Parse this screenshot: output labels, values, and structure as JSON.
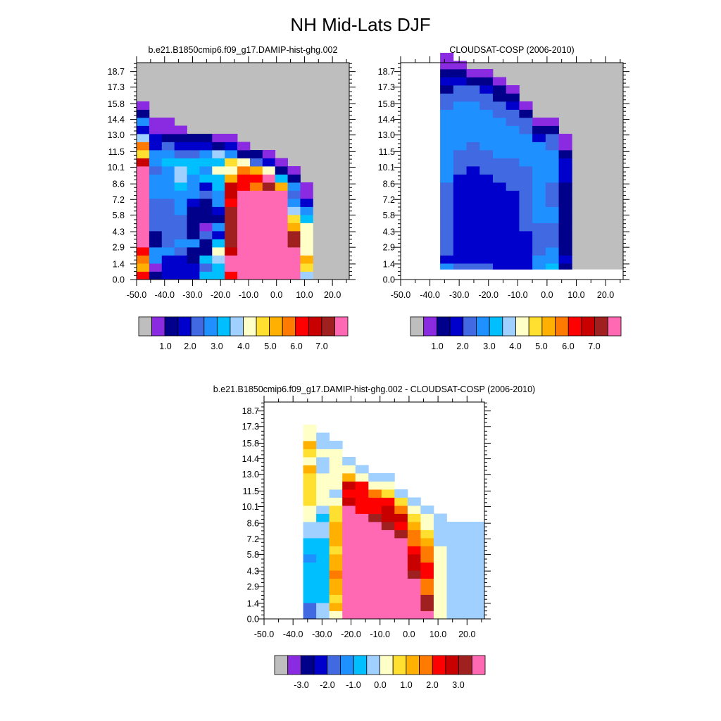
{
  "page": {
    "title": "NH Mid-Lats DJF"
  },
  "colors": {
    "missing": "#bebebe",
    "palette": [
      "#8a2be2",
      "#00008b",
      "#0000cd",
      "#4169e1",
      "#1e90ff",
      "#00bfff",
      "#a0d0ff",
      "#ffffc8",
      "#ffe030",
      "#ffb000",
      "#ff7a00",
      "#ff0000",
      "#c80000",
      "#a02020",
      "#ff69b4"
    ]
  },
  "chart_data": [
    {
      "type": "heatmap",
      "title": "b.e21.B1850cmip6.f09_g17.DAMIP-hist-ghg.002",
      "xlabel": "",
      "ylabel": "",
      "xticks": [
        "-50.0",
        "-40.0",
        "-30.0",
        "-20.0",
        "-10.0",
        "0.0",
        "10.0",
        "20.0"
      ],
      "xrange": [
        -50,
        26
      ],
      "yticks": [
        "0.0",
        "1.4",
        "2.9",
        "4.3",
        "5.8",
        "7.2",
        "8.6",
        "10.1",
        "11.5",
        "13.0",
        "14.4",
        "15.8",
        "17.3",
        "18.7"
      ],
      "yrange": [
        0,
        19.5
      ],
      "colorbar": {
        "labels": [
          "1.0",
          "2.0",
          "3.0",
          "4.0",
          "5.0",
          "6.0",
          "7.0"
        ],
        "missing_box": true
      },
      "columns": [
        {
          "x0": -50.0,
          "x1": -45.5,
          "levels": [
            11,
            9,
            10,
            11,
            14,
            14,
            14,
            14,
            14,
            14,
            14,
            14,
            14,
            14,
            12,
            8,
            10,
            6,
            2,
            4,
            1,
            0
          ]
        },
        {
          "x0": -45.5,
          "x1": -41.0,
          "levels": [
            1,
            0,
            4,
            4,
            1,
            1,
            3,
            3,
            3,
            3,
            4,
            4,
            4,
            3,
            4,
            4,
            2,
            2,
            0,
            0
          ]
        },
        {
          "x0": -41.0,
          "x1": -36.5,
          "levels": [
            2,
            2,
            2,
            4,
            3,
            3,
            3,
            3,
            3,
            3,
            4,
            4,
            4,
            4,
            5,
            4,
            3,
            1,
            0,
            0
          ]
        },
        {
          "x0": -36.5,
          "x1": -32.0,
          "levels": [
            2,
            2,
            2,
            3,
            4,
            3,
            3,
            3,
            4,
            4,
            4,
            5,
            6,
            6,
            5,
            3,
            2,
            1,
            0
          ]
        },
        {
          "x0": -32.0,
          "x1": -27.5,
          "levels": [
            2,
            2,
            1,
            1,
            4,
            1,
            1,
            1,
            1,
            2,
            4,
            4,
            4,
            5,
            5,
            3,
            2,
            1
          ]
        },
        {
          "x0": -27.5,
          "x1": -23.0,
          "levels": [
            5,
            3,
            5,
            1,
            1,
            3,
            0,
            1,
            1,
            1,
            3,
            2,
            5,
            4,
            5,
            4,
            2,
            1
          ]
        },
        {
          "x0": -23.0,
          "x1": -18.5,
          "levels": [
            5,
            5,
            6,
            7,
            5,
            2,
            4,
            1,
            2,
            4,
            4,
            5,
            5,
            7,
            5,
            6,
            1,
            0
          ]
        },
        {
          "x0": -18.5,
          "x1": -14.0,
          "levels": [
            11,
            14,
            14,
            12,
            13,
            13,
            13,
            13,
            13,
            11,
            12,
            12,
            9,
            7,
            8,
            4,
            2,
            0
          ]
        },
        {
          "x0": -14.0,
          "x1": -9.5,
          "levels": [
            14,
            14,
            14,
            14,
            14,
            14,
            14,
            14,
            14,
            14,
            14,
            11,
            11,
            10,
            7,
            1,
            0
          ]
        },
        {
          "x0": -9.5,
          "x1": -5.0,
          "levels": [
            14,
            14,
            14,
            14,
            14,
            14,
            14,
            14,
            14,
            14,
            14,
            10,
            11,
            9,
            3,
            1
          ]
        },
        {
          "x0": -5.0,
          "x1": -0.5,
          "levels": [
            14,
            14,
            14,
            14,
            14,
            14,
            14,
            14,
            14,
            14,
            14,
            13,
            14,
            7,
            2,
            0
          ]
        },
        {
          "x0": -0.5,
          "x1": 4.0,
          "levels": [
            14,
            14,
            14,
            14,
            14,
            14,
            14,
            14,
            14,
            14,
            14,
            9,
            5,
            1,
            0
          ]
        },
        {
          "x0": 4.0,
          "x1": 8.5,
          "levels": [
            14,
            14,
            14,
            14,
            13,
            13,
            9,
            8,
            6,
            4,
            3,
            4,
            1,
            0
          ]
        },
        {
          "x0": 8.5,
          "x1": 13.0,
          "levels": [
            6,
            8,
            9,
            7,
            7,
            7,
            7,
            5,
            4,
            2,
            0,
            0
          ]
        }
      ]
    },
    {
      "type": "heatmap",
      "title": "CLOUDSAT-COSP (2006-2010)",
      "xlabel": "",
      "ylabel": "",
      "xticks": [
        "-50.0",
        "-40.0",
        "-30.0",
        "-20.0",
        "-10.0",
        "0.0",
        "10.0",
        "20.0"
      ],
      "xrange": [
        -50,
        26
      ],
      "yticks": [
        "0.0",
        "1.4",
        "2.9",
        "4.3",
        "5.8",
        "7.2",
        "8.6",
        "10.1",
        "11.5",
        "13.0",
        "14.4",
        "15.8",
        "17.3",
        "18.7"
      ],
      "yrange": [
        0,
        19.5
      ],
      "colorbar": {
        "labels": [
          "1.0",
          "2.0",
          "3.0",
          "4.0",
          "5.0",
          "6.0",
          "7.0"
        ],
        "missing_box": true
      },
      "columns": [
        {
          "x0": -36.5,
          "x1": -32.0,
          "levels": [
            6,
            4,
            2,
            3,
            3,
            3,
            3,
            3,
            3,
            3,
            3,
            3,
            4,
            4,
            4,
            4,
            4,
            4,
            4,
            4,
            4,
            3,
            3,
            1,
            2,
            1,
            0,
            0
          ]
        },
        {
          "x0": -32.0,
          "x1": -27.5,
          "levels": [
            5,
            3,
            2,
            2,
            2,
            2,
            2,
            2,
            2,
            2,
            2,
            2,
            2,
            3,
            3,
            3,
            4,
            4,
            4,
            4,
            4,
            4,
            3,
            3,
            2,
            1,
            0
          ]
        },
        {
          "x0": -27.5,
          "x1": -23.0,
          "levels": [
            3,
            3,
            2,
            2,
            2,
            2,
            2,
            2,
            2,
            2,
            2,
            2,
            2,
            2,
            3,
            3,
            3,
            4,
            4,
            4,
            4,
            4,
            3,
            3,
            1,
            0
          ]
        },
        {
          "x0": -23.0,
          "x1": -18.5,
          "levels": [
            3,
            3,
            2,
            2,
            2,
            2,
            2,
            2,
            2,
            2,
            2,
            2,
            2,
            3,
            3,
            3,
            4,
            4,
            4,
            4,
            4,
            3,
            3,
            2,
            1,
            0
          ]
        },
        {
          "x0": -18.5,
          "x1": -14.0,
          "levels": [
            3,
            2,
            2,
            2,
            2,
            2,
            2,
            2,
            2,
            2,
            2,
            2,
            3,
            3,
            3,
            4,
            4,
            4,
            4,
            4,
            3,
            3,
            1,
            1,
            0
          ]
        },
        {
          "x0": -14.0,
          "x1": -9.5,
          "levels": [
            3,
            2,
            2,
            2,
            2,
            2,
            2,
            2,
            2,
            2,
            2,
            3,
            3,
            3,
            3,
            4,
            4,
            4,
            4,
            3,
            3,
            2,
            1,
            0
          ]
        },
        {
          "x0": -9.5,
          "x1": -5.0,
          "levels": [
            5,
            2,
            2,
            2,
            2,
            2,
            3,
            3,
            3,
            3,
            3,
            3,
            3,
            3,
            4,
            4,
            4,
            4,
            3,
            3,
            1,
            0
          ]
        },
        {
          "x0": -5.0,
          "x1": -0.5,
          "levels": [
            5,
            4,
            4,
            3,
            3,
            3,
            3,
            4,
            4,
            4,
            4,
            4,
            4,
            4,
            4,
            4,
            4,
            2,
            1,
            0
          ]
        },
        {
          "x0": -0.5,
          "x1": 4.0,
          "levels": [
            5,
            5,
            4,
            4,
            3,
            3,
            3,
            4,
            4,
            3,
            3,
            3,
            4,
            4,
            4,
            4,
            3,
            3,
            1,
            0
          ]
        },
        {
          "x0": 4.0,
          "x1": 8.5,
          "levels": [
            1,
            1,
            2,
            1,
            1,
            1,
            1,
            1,
            1,
            1,
            1,
            1,
            2,
            2,
            2,
            1,
            0,
            0
          ]
        },
        {
          "x0": 8.5,
          "x1": 13.0,
          "levels": [
            -1,
            -1,
            -1,
            -1,
            -1,
            -1,
            -1,
            -1,
            -1,
            -1,
            -1,
            -1,
            -1,
            -1,
            -1
          ]
        }
      ]
    },
    {
      "type": "heatmap",
      "title": "b.e21.B1850cmip6.f09_g17.DAMIP-hist-ghg.002 - CLOUDSAT-COSP (2006-2010)",
      "xlabel": "",
      "ylabel": "",
      "xticks": [
        "-50.0",
        "-40.0",
        "-30.0",
        "-20.0",
        "-10.0",
        "0.0",
        "10.0",
        "20.0"
      ],
      "xrange": [
        -50,
        26
      ],
      "yticks": [
        "0.0",
        "1.4",
        "2.9",
        "4.3",
        "5.8",
        "7.2",
        "8.6",
        "10.1",
        "11.5",
        "13.0",
        "14.4",
        "15.8",
        "17.3",
        "18.7"
      ],
      "yrange": [
        0,
        19.5
      ],
      "colorbar": {
        "labels": [
          "-3.0",
          "-2.0",
          "-1.0",
          "0.0",
          "1.0",
          "2.0",
          "3.0"
        ],
        "missing_box": true
      },
      "columns": [
        {
          "x0": -36.5,
          "x1": -32.0,
          "levels": [
            3,
            3,
            5,
            5,
            5,
            5,
            5,
            4,
            5,
            5,
            6,
            6,
            7,
            7,
            8,
            8,
            8,
            8,
            9,
            7,
            8,
            9,
            7,
            7
          ]
        },
        {
          "x0": -32.0,
          "x1": -27.5,
          "levels": [
            6,
            6,
            5,
            5,
            5,
            5,
            5,
            5,
            5,
            5,
            6,
            6,
            5,
            6,
            7,
            7,
            7,
            7,
            6,
            6,
            7,
            6,
            6
          ]
        },
        {
          "x0": -27.5,
          "x1": -23.0,
          "levels": [
            7,
            9,
            8,
            9,
            9,
            10,
            9,
            9,
            8,
            9,
            9,
            9,
            8,
            8,
            7,
            6,
            7,
            7,
            7,
            7,
            7,
            6
          ]
        },
        {
          "x0": -23.0,
          "x1": -18.5,
          "levels": [
            14,
            14,
            14,
            14,
            14,
            14,
            14,
            14,
            14,
            14,
            14,
            14,
            14,
            14,
            12,
            11,
            12,
            9,
            7,
            6
          ]
        },
        {
          "x0": -18.5,
          "x1": -14.0,
          "levels": [
            14,
            14,
            14,
            14,
            14,
            14,
            14,
            14,
            14,
            14,
            14,
            14,
            14,
            11,
            11,
            11,
            11,
            7,
            6
          ]
        },
        {
          "x0": -14.0,
          "x1": -9.5,
          "levels": [
            14,
            14,
            14,
            14,
            14,
            14,
            14,
            14,
            14,
            14,
            14,
            14,
            13,
            11,
            11,
            10,
            7,
            6
          ]
        },
        {
          "x0": -9.5,
          "x1": -5.0,
          "levels": [
            14,
            14,
            14,
            14,
            14,
            14,
            14,
            14,
            14,
            14,
            14,
            13,
            12,
            12,
            11,
            8,
            7,
            6
          ]
        },
        {
          "x0": -5.0,
          "x1": -0.5,
          "levels": [
            14,
            14,
            14,
            14,
            14,
            14,
            14,
            14,
            14,
            14,
            13,
            11,
            12,
            10,
            8,
            6
          ]
        },
        {
          "x0": -0.5,
          "x1": 4.0,
          "levels": [
            14,
            14,
            14,
            14,
            14,
            13,
            12,
            12,
            11,
            10,
            10,
            9,
            8,
            7,
            6
          ]
        },
        {
          "x0": 4.0,
          "x1": 8.5,
          "levels": [
            14,
            13,
            13,
            10,
            10,
            11,
            11,
            10,
            10,
            9,
            8,
            7,
            7,
            6
          ]
        },
        {
          "x0": 8.5,
          "x1": 13.0,
          "levels": [
            7,
            7,
            7,
            7,
            7,
            7,
            7,
            7,
            7,
            6,
            6,
            6,
            6
          ]
        },
        {
          "x0": 13.0,
          "x1": 26.0,
          "levels": [
            6,
            6,
            6,
            6,
            6,
            6,
            6,
            6,
            6,
            6,
            6,
            6
          ]
        }
      ]
    }
  ]
}
